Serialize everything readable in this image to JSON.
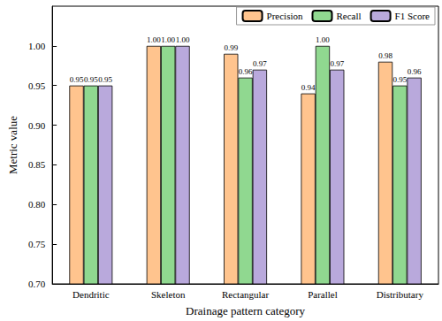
{
  "chart_data": {
    "type": "bar",
    "x_label": "Drainage pattern category",
    "y_label": "Metric value",
    "categories": [
      "Dendritic",
      "Skeleton",
      "Rectangular",
      "Parallel",
      "Distributary"
    ],
    "series": [
      {
        "name": "Precision",
        "color": "#FFC48E",
        "values": [
          0.95,
          1.0,
          0.99,
          0.94,
          0.98
        ],
        "value_labels": [
          "0.95",
          "1.00",
          "0.99",
          "0.94",
          "0.98"
        ]
      },
      {
        "name": "Recall",
        "color": "#90D890",
        "values": [
          0.95,
          1.0,
          0.96,
          1.0,
          0.95
        ],
        "value_labels": [
          "0.95",
          "1.00",
          "0.96",
          "1.00",
          "0.95"
        ]
      },
      {
        "name": "F1 Score",
        "color": "#B9A9DC",
        "values": [
          0.95,
          1.0,
          0.97,
          0.97,
          0.96
        ],
        "value_labels": [
          "0.95",
          "1.00",
          "0.97",
          "0.97",
          "0.96"
        ]
      }
    ],
    "ylim": [
      0.7,
      1.05
    ],
    "yticks": [
      {
        "value": 0.7,
        "label": "0.70"
      },
      {
        "value": 0.75,
        "label": "0.75"
      },
      {
        "value": 0.8,
        "label": "0.80"
      },
      {
        "value": 0.85,
        "label": "0.85"
      },
      {
        "value": 0.9,
        "label": "0.90"
      },
      {
        "value": 0.95,
        "label": "0.95"
      },
      {
        "value": 1.0,
        "label": "1.00"
      }
    ],
    "legend": "upper right",
    "data_labels": true,
    "grid": false
  }
}
